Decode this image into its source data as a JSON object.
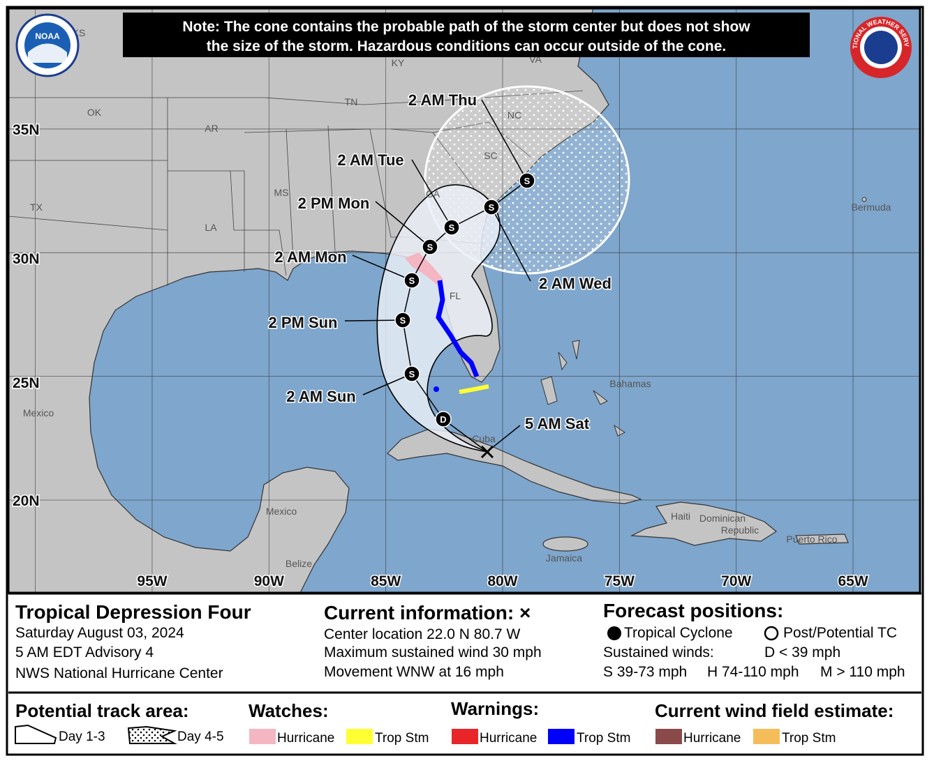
{
  "header": {
    "note_lines": [
      "Note: The cone contains the probable path of the storm center but does not show",
      "the size of the storm. Hazardous conditions can occur outside of the cone."
    ]
  },
  "logos": {
    "noaa": "NOAA",
    "nws": "NATIONAL WEATHER SERVICE"
  },
  "map": {
    "lat_labels": [
      "35N",
      "30N",
      "25N",
      "20N"
    ],
    "lon_labels": [
      "95W",
      "90W",
      "85W",
      "80W",
      "75W",
      "70W",
      "65W"
    ],
    "places": [
      "KS",
      "KY",
      "VA",
      "OK",
      "AR",
      "TN",
      "NC",
      "SC",
      "GA",
      "MS",
      "TX",
      "LA",
      "FL",
      "Bermuda",
      "Bahamas",
      "Mexico",
      "Mexico",
      "Cuba",
      "Haiti",
      "Dominican",
      "Republic",
      "Puerto Rico",
      "Jamaica",
      "Belize"
    ],
    "current_position": "5 AM Sat",
    "forecast_points": [
      {
        "marker": "D"
      },
      {
        "time": "2 AM Sun",
        "marker": "S"
      },
      {
        "time": "2 PM Sun",
        "marker": "S"
      },
      {
        "time": "2 AM Mon",
        "marker": "S"
      },
      {
        "time": "2 PM Mon",
        "marker": "S"
      },
      {
        "time": "2 AM Tue",
        "marker": "S"
      },
      {
        "time": "2 AM Wed",
        "marker": "S"
      },
      {
        "time": "2 AM Thu",
        "marker": "S"
      }
    ]
  },
  "info": {
    "storm_name": "Tropical Depression Four",
    "date": "Saturday August 03, 2024",
    "advisory": "5 AM EDT Advisory 4",
    "center": "NWS National Hurricane Center",
    "current_title": "Current information: ×",
    "current_lines": [
      "Center location 22.0 N 80.7 W",
      "Maximum sustained wind 30 mph",
      "Movement WNW at 16 mph"
    ],
    "forecast_title": "Forecast positions:",
    "tc": "Tropical Cyclone",
    "post": "Post/Potential TC",
    "sustained": "Sustained winds:",
    "d": "D < 39 mph",
    "s": "S 39-73 mph",
    "h": "H 74-110 mph",
    "m": "M > 110 mph"
  },
  "legend": {
    "track_title": "Potential track area:",
    "day13": "Day 1-3",
    "day45": "Day 4-5",
    "watches_title": "Watches:",
    "watch_items": [
      "Hurricane",
      "Trop Stm"
    ],
    "warnings_title": "Warnings:",
    "warning_items": [
      "Hurricane",
      "Trop Stm"
    ],
    "wind_title": "Current wind field estimate:",
    "wind_items": [
      "Hurricane",
      "Trop Stm"
    ]
  }
}
